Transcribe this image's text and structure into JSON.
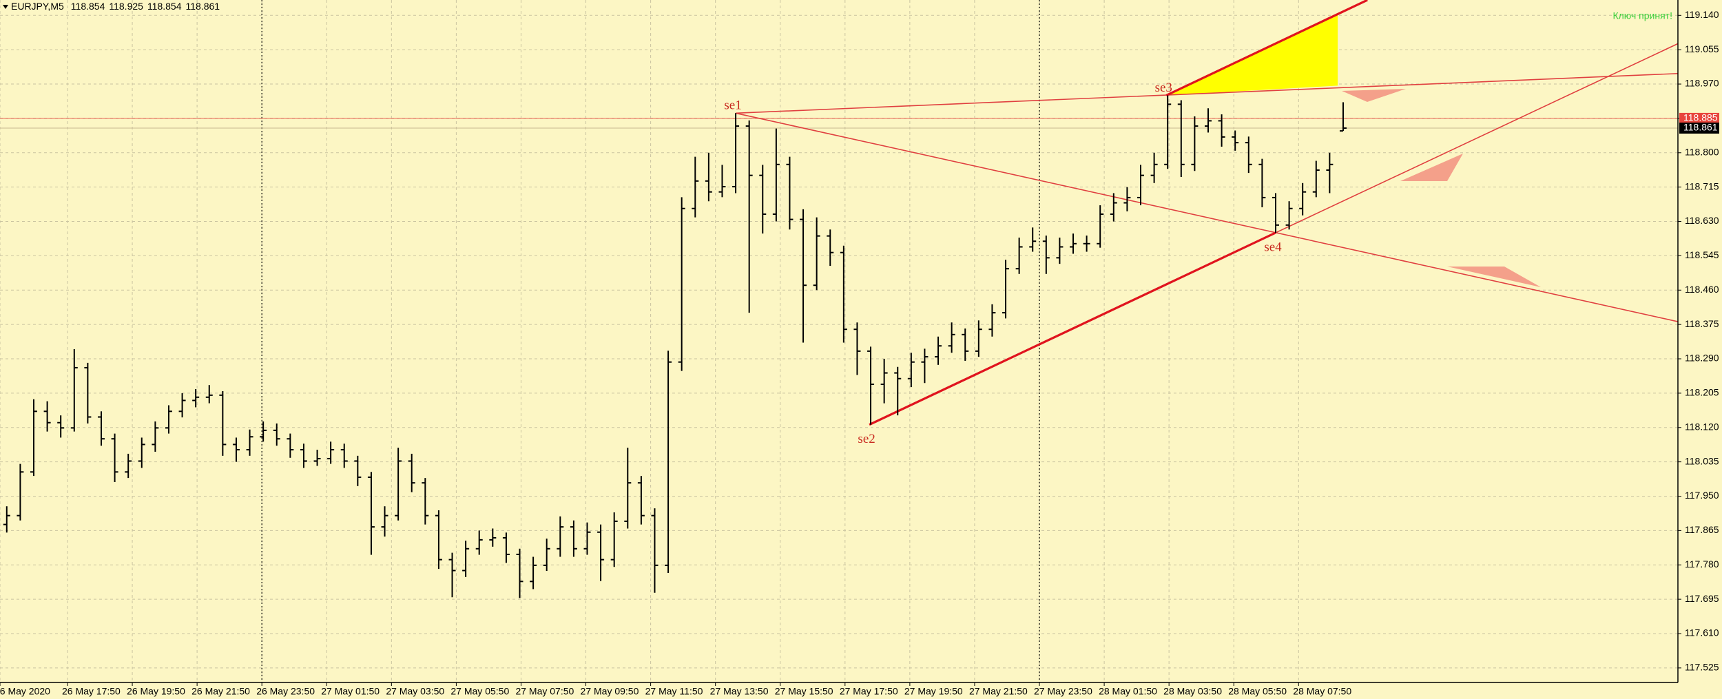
{
  "chart_data": {
    "type": "ohlc",
    "symbol": "EURJPY,M5",
    "notice": "Ключ принят!",
    "ylim": [
      117.489,
      119.178
    ],
    "yticks": [
      {
        "value": 119.14,
        "label": "119.140"
      },
      119.055,
      {
        "value": 118.97,
        "label": "118.970"
      },
      118.885,
      {
        "value": 118.8,
        "label": "118.800"
      },
      118.715,
      {
        "value": 118.63,
        "label": "118.630"
      },
      118.545,
      {
        "value": 118.46,
        "label": "118.460"
      },
      118.375,
      {
        "value": 118.29,
        "label": "118.290"
      },
      118.205,
      {
        "value": 118.12,
        "label": "118.120"
      },
      118.035,
      {
        "value": 117.95,
        "label": "117.950"
      },
      117.865,
      {
        "value": 117.78,
        "label": "117.780"
      },
      117.695,
      {
        "value": 117.61,
        "label": "117.610"
      },
      117.525
    ],
    "xlim": [
      0,
      124.3
    ],
    "xticks": [
      {
        "value": 0,
        "label": "26 May 2020"
      },
      {
        "value": 5.0,
        "label": "26 May 17:50"
      },
      {
        "value": 9.8,
        "label": "26 May 19:50"
      },
      {
        "value": 14.6,
        "label": "26 May 21:50"
      },
      {
        "value": 19.4,
        "label": "26 May 23:50"
      },
      {
        "value": 24.2,
        "label": "27 May 01:50"
      },
      {
        "value": 29.0,
        "label": "27 May 03:50"
      },
      {
        "value": 33.8,
        "label": "27 May 05:50"
      },
      {
        "value": 38.6,
        "label": "27 May 07:50"
      },
      {
        "value": 43.4,
        "label": "27 May 09:50"
      },
      {
        "value": 48.2,
        "label": "27 May 11:50"
      },
      {
        "value": 53.0,
        "label": "27 May 13:50"
      },
      {
        "value": 57.8,
        "label": "27 May 15:50"
      },
      {
        "value": 62.6,
        "label": "27 May 17:50"
      },
      {
        "value": 67.4,
        "label": "27 May 19:50"
      },
      {
        "value": 72.2,
        "label": "27 May 21:50"
      },
      {
        "value": 77.0,
        "label": "27 May 23:50"
      },
      {
        "value": 81.8,
        "label": "28 May 01:50"
      },
      {
        "value": 86.6,
        "label": "28 May 03:50"
      },
      {
        "value": 91.4,
        "label": "28 May 05:50"
      },
      {
        "value": 96.2,
        "label": "28 May 07:50"
      }
    ],
    "grid": true,
    "period_separators": [
      19.4,
      77.0
    ],
    "color": "#000000",
    "ask": 118.885,
    "ask_color": "#e8453c",
    "ohlc": [
      [
        117.88,
        117.925,
        117.86,
        117.902
      ],
      [
        117.902,
        118.03,
        117.89,
        118.01
      ],
      [
        118.01,
        118.19,
        118.0,
        118.16
      ],
      [
        118.16,
        118.185,
        118.11,
        118.132
      ],
      [
        118.132,
        118.15,
        118.095,
        118.119
      ],
      [
        118.119,
        118.314,
        118.11,
        118.268
      ],
      [
        118.268,
        118.28,
        118.13,
        118.146
      ],
      [
        118.146,
        118.16,
        118.075,
        118.092
      ],
      [
        118.092,
        118.105,
        117.985,
        118.01
      ],
      [
        118.01,
        118.055,
        117.995,
        118.037
      ],
      [
        118.037,
        118.095,
        118.02,
        118.078
      ],
      [
        118.078,
        118.135,
        118.06,
        118.119
      ],
      [
        118.119,
        118.175,
        118.105,
        118.16
      ],
      [
        118.16,
        118.205,
        118.145,
        118.187
      ],
      [
        118.187,
        118.215,
        118.17,
        118.195
      ],
      [
        118.195,
        118.225,
        118.18,
        118.2
      ],
      [
        118.2,
        118.21,
        118.05,
        118.078
      ],
      [
        118.078,
        118.095,
        118.035,
        118.065
      ],
      [
        118.065,
        118.115,
        118.05,
        118.097
      ],
      [
        118.097,
        118.135,
        118.085,
        118.113
      ],
      [
        118.113,
        118.13,
        118.075,
        118.092
      ],
      [
        118.092,
        118.105,
        118.045,
        118.065
      ],
      [
        118.065,
        118.08,
        118.02,
        118.037
      ],
      [
        118.037,
        118.065,
        118.025,
        118.043
      ],
      [
        118.043,
        118.085,
        118.03,
        118.065
      ],
      [
        118.065,
        118.08,
        118.02,
        118.037
      ],
      [
        118.037,
        118.05,
        117.975,
        117.997
      ],
      [
        117.997,
        118.01,
        117.805,
        117.874
      ],
      [
        117.874,
        117.925,
        117.85,
        117.902
      ],
      [
        117.902,
        118.07,
        117.89,
        118.037
      ],
      [
        118.037,
        118.055,
        117.96,
        117.983
      ],
      [
        117.983,
        117.995,
        117.88,
        117.902
      ],
      [
        117.902,
        117.915,
        117.77,
        117.793
      ],
      [
        117.793,
        117.81,
        117.7,
        117.766
      ],
      [
        117.766,
        117.84,
        117.75,
        117.82
      ],
      [
        117.82,
        117.865,
        117.805,
        117.842
      ],
      [
        117.842,
        117.87,
        117.825,
        117.847
      ],
      [
        117.847,
        117.86,
        117.785,
        117.806
      ],
      [
        117.806,
        117.82,
        117.698,
        117.739
      ],
      [
        117.739,
        117.8,
        117.72,
        117.779
      ],
      [
        117.779,
        117.845,
        117.765,
        117.82
      ],
      [
        117.82,
        117.9,
        117.8,
        117.874
      ],
      [
        117.874,
        117.89,
        117.8,
        117.82
      ],
      [
        117.82,
        117.885,
        117.805,
        117.861
      ],
      [
        117.861,
        117.88,
        117.74,
        117.793
      ],
      [
        117.793,
        117.91,
        117.775,
        117.888
      ],
      [
        117.888,
        118.07,
        117.87,
        117.983
      ],
      [
        117.983,
        118.0,
        117.88,
        117.902
      ],
      [
        117.902,
        117.92,
        117.711,
        117.779
      ],
      [
        117.779,
        118.31,
        117.76,
        118.282
      ],
      [
        118.282,
        118.69,
        118.26,
        118.662
      ],
      [
        118.662,
        118.79,
        118.64,
        118.73
      ],
      [
        118.73,
        118.8,
        118.68,
        118.703
      ],
      [
        118.703,
        118.77,
        118.69,
        118.716
      ],
      [
        118.716,
        118.898,
        118.7,
        118.866
      ],
      [
        118.866,
        118.88,
        118.404,
        118.744
      ],
      [
        118.744,
        118.77,
        118.6,
        118.648
      ],
      [
        118.648,
        118.86,
        118.63,
        118.771
      ],
      [
        118.771,
        118.79,
        118.61,
        118.635
      ],
      [
        118.635,
        118.66,
        118.33,
        118.472
      ],
      [
        118.472,
        118.64,
        118.46,
        118.594
      ],
      [
        118.594,
        118.61,
        118.52,
        118.553
      ],
      [
        118.553,
        118.57,
        118.33,
        118.363
      ],
      [
        118.363,
        118.38,
        118.25,
        118.309
      ],
      [
        118.309,
        118.32,
        118.127,
        118.227
      ],
      [
        118.227,
        118.29,
        118.18,
        118.255
      ],
      [
        118.255,
        118.27,
        118.15,
        118.241
      ],
      [
        118.241,
        118.305,
        118.22,
        118.282
      ],
      [
        118.282,
        118.315,
        118.23,
        118.295
      ],
      [
        118.295,
        118.345,
        118.275,
        118.322
      ],
      [
        118.322,
        118.38,
        118.305,
        118.35
      ],
      [
        118.35,
        118.365,
        118.285,
        118.309
      ],
      [
        118.309,
        118.385,
        118.295,
        118.363
      ],
      [
        118.363,
        118.425,
        118.345,
        118.404
      ],
      [
        118.404,
        118.535,
        118.39,
        118.513
      ],
      [
        118.513,
        118.59,
        118.5,
        118.567
      ],
      [
        118.567,
        118.615,
        118.555,
        118.581
      ],
      [
        118.581,
        118.595,
        118.5,
        118.54
      ],
      [
        118.54,
        118.59,
        118.525,
        118.567
      ],
      [
        118.567,
        118.6,
        118.55,
        118.575
      ],
      [
        118.575,
        118.595,
        118.555,
        118.575
      ],
      [
        118.575,
        118.67,
        118.565,
        118.648
      ],
      [
        118.648,
        118.7,
        118.63,
        118.676
      ],
      [
        118.676,
        118.715,
        118.655,
        118.689
      ],
      [
        118.689,
        118.77,
        118.67,
        118.744
      ],
      [
        118.744,
        118.8,
        118.725,
        118.771
      ],
      [
        118.771,
        118.942,
        118.76,
        118.92
      ],
      [
        118.92,
        118.93,
        118.74,
        118.771
      ],
      [
        118.771,
        118.89,
        118.755,
        118.866
      ],
      [
        118.866,
        118.91,
        118.85,
        118.879
      ],
      [
        118.879,
        118.895,
        118.815,
        118.839
      ],
      [
        118.839,
        118.855,
        118.805,
        118.825
      ],
      [
        118.825,
        118.84,
        118.75,
        118.771
      ],
      [
        118.771,
        118.785,
        118.665,
        118.689
      ],
      [
        118.689,
        118.7,
        118.602,
        118.621
      ],
      [
        118.621,
        118.68,
        118.61,
        118.662
      ],
      [
        118.662,
        118.725,
        118.645,
        118.703
      ],
      [
        118.703,
        118.78,
        118.69,
        118.757
      ],
      [
        118.757,
        118.8,
        118.7,
        118.771
      ],
      [
        118.854,
        118.925,
        118.854,
        118.861
      ]
    ],
    "fill_area": {
      "x": [
        86.4,
        99.1,
        99.1
      ],
      "y": [
        118.942,
        119.145,
        118.966
      ],
      "color": "#ffff00"
    },
    "trendlines": [
      {
        "x": [
          54.5,
          124.3
        ],
        "y": [
          118.898,
          118.996
        ],
        "color": "#e04040"
      },
      {
        "x": [
          54.5,
          124.3
        ],
        "y": [
          118.898,
          118.382
        ],
        "color": "#e04040"
      },
      {
        "x": [
          64.4,
          94.5
        ],
        "y": [
          118.127,
          118.602
        ],
        "color": "#e0141e",
        "bold": true
      },
      {
        "x": [
          94.5,
          124.3
        ],
        "y": [
          118.602,
          119.07
        ],
        "color": "#e04040"
      },
      {
        "x": [
          86.4,
          101.3
        ],
        "y": [
          118.942,
          119.178
        ],
        "color": "#e0141e",
        "bold": true
      }
    ],
    "labels": [
      {
        "text": "se1",
        "x": 54.5,
        "y": 118.898,
        "position": "above"
      },
      {
        "text": "se2",
        "x": 64.4,
        "y": 118.127,
        "position": "below"
      },
      {
        "text": "se3",
        "x": 86.4,
        "y": 118.942,
        "position": "above"
      },
      {
        "text": "se4",
        "x": 94.5,
        "y": 118.602,
        "position": "below"
      }
    ]
  }
}
